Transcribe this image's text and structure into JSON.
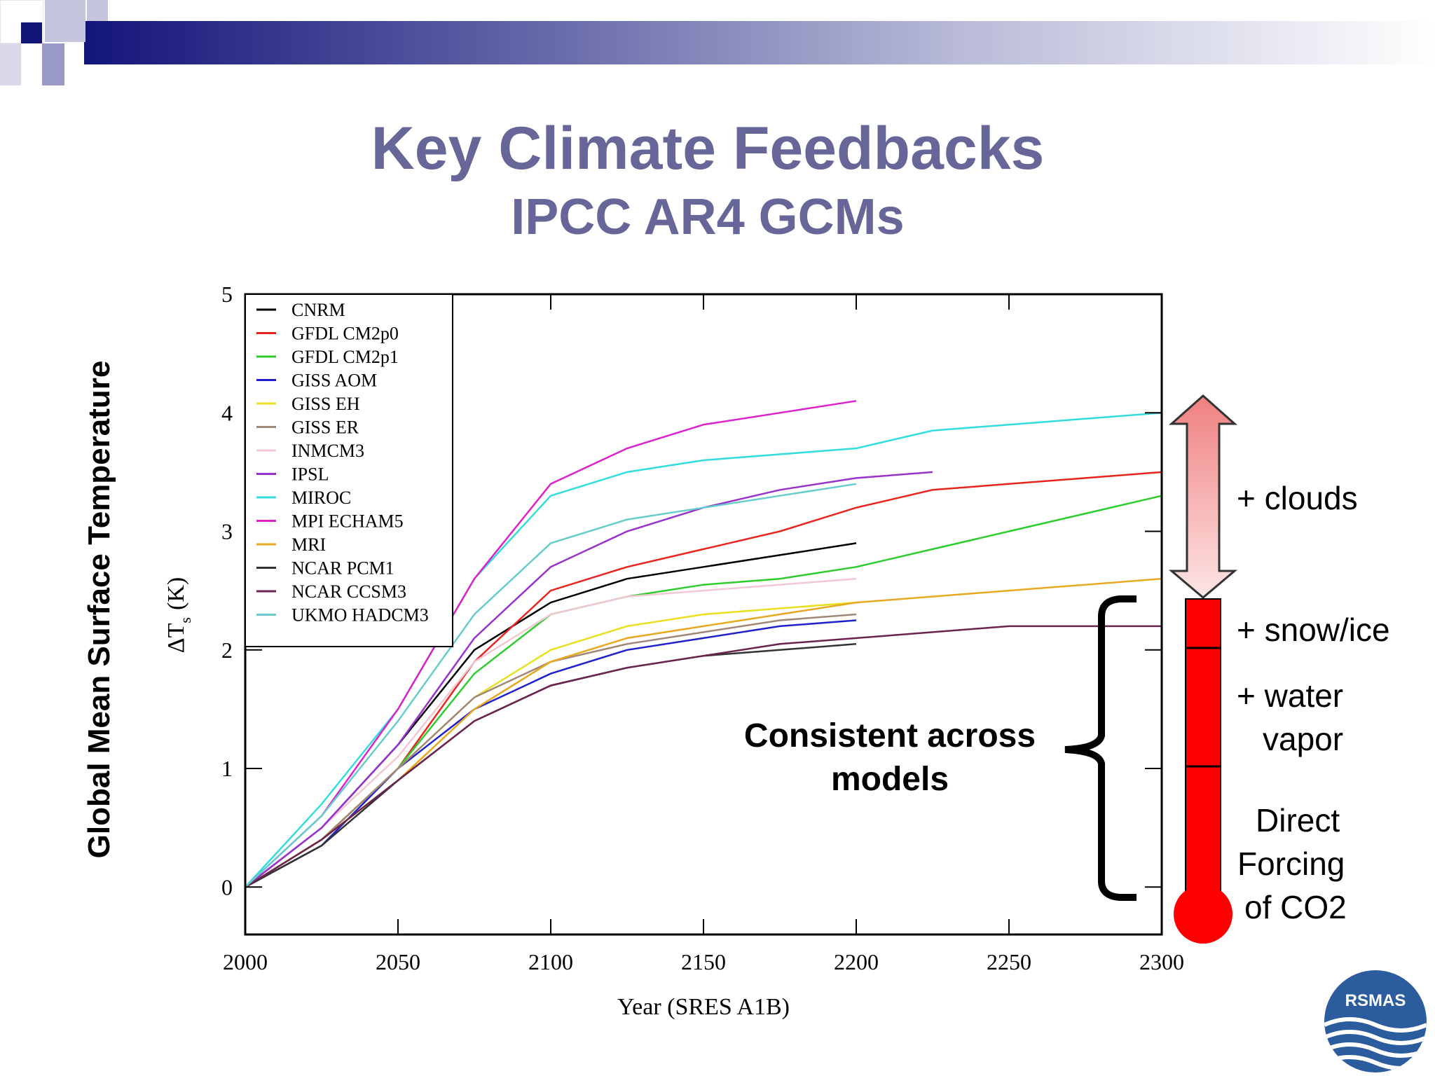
{
  "slide": {
    "title": "Key Climate Feedbacks",
    "subtitle": "IPCC AR4 GCMs",
    "side_label": "Global Mean Surface Temperature"
  },
  "annotations": {
    "clouds": "+ clouds",
    "snow_ice": "+ snow/ice",
    "water_vapor_1": "+ water",
    "water_vapor_2": "vapor",
    "direct_1": "Direct",
    "direct_2": "Forcing",
    "direct_3": "of CO2",
    "consistent_1": "Consistent across",
    "consistent_2": "models"
  },
  "logo": {
    "text": "RSMAS"
  },
  "colors": {
    "title": "#666699",
    "thermometer": "#ff0000",
    "arrow_top": "#f08080",
    "arrow_bottom": "#fde5e5"
  },
  "chart_data": {
    "type": "line",
    "xlabel": "Year (SRES A1B)",
    "ylabel": "ΔT",
    "ylabel_sub": "s",
    "ylabel_unit": "(K)",
    "xlim": [
      2000,
      2300
    ],
    "ylim": [
      -0.4,
      5
    ],
    "xticks": [
      2000,
      2050,
      2100,
      2150,
      2200,
      2250,
      2300
    ],
    "yticks": [
      0,
      1,
      2,
      3,
      4,
      5
    ],
    "legend_position": "top-left",
    "series": [
      {
        "name": "CNRM",
        "color": "#000000",
        "x": [
          2000,
          2025,
          2050,
          2075,
          2100,
          2125,
          2150,
          2175,
          2200
        ],
        "y": [
          0.0,
          0.5,
          1.2,
          2.0,
          2.4,
          2.6,
          2.7,
          2.8,
          2.9
        ]
      },
      {
        "name": "GFDL CM2p0",
        "color": "#e8251f",
        "x": [
          2000,
          2025,
          2050,
          2075,
          2100,
          2125,
          2150,
          2175,
          2200,
          2225,
          2250,
          2275,
          2300
        ],
        "y": [
          0.0,
          0.4,
          1.0,
          1.9,
          2.5,
          2.7,
          2.85,
          3.0,
          3.2,
          3.35,
          3.4,
          3.45,
          3.5
        ]
      },
      {
        "name": "GFDL CM2p1",
        "color": "#2ecc2e",
        "x": [
          2000,
          2025,
          2050,
          2075,
          2100,
          2125,
          2150,
          2175,
          2200,
          2225,
          2250,
          2275,
          2300
        ],
        "y": [
          0.0,
          0.4,
          1.0,
          1.8,
          2.3,
          2.45,
          2.55,
          2.6,
          2.7,
          2.85,
          3.0,
          3.15,
          3.3
        ]
      },
      {
        "name": "GISS AOM",
        "color": "#2020cc",
        "x": [
          2000,
          2025,
          2050,
          2075,
          2100,
          2125,
          2150,
          2175,
          2200
        ],
        "y": [
          0.0,
          0.35,
          1.0,
          1.5,
          1.8,
          2.0,
          2.1,
          2.2,
          2.25
        ]
      },
      {
        "name": "GISS EH",
        "color": "#e8e020",
        "x": [
          2000,
          2025,
          2050,
          2075,
          2100,
          2125,
          2150,
          2175,
          2200
        ],
        "y": [
          0.0,
          0.4,
          1.0,
          1.6,
          2.0,
          2.2,
          2.3,
          2.35,
          2.4
        ]
      },
      {
        "name": "GISS ER",
        "color": "#a08878",
        "x": [
          2000,
          2025,
          2050,
          2075,
          2100,
          2125,
          2150,
          2175,
          2200
        ],
        "y": [
          0.0,
          0.4,
          1.0,
          1.6,
          1.9,
          2.05,
          2.15,
          2.25,
          2.3
        ]
      },
      {
        "name": "INMCM3",
        "color": "#f2c8d2",
        "x": [
          2000,
          2025,
          2050,
          2075,
          2100,
          2125,
          2150,
          2175,
          2200
        ],
        "y": [
          0.0,
          0.5,
          1.1,
          1.9,
          2.3,
          2.45,
          2.5,
          2.55,
          2.6
        ]
      },
      {
        "name": "IPSL",
        "color": "#9933cc",
        "x": [
          2000,
          2025,
          2050,
          2075,
          2100,
          2125,
          2150,
          2175,
          2200,
          2225
        ],
        "y": [
          0.0,
          0.5,
          1.2,
          2.1,
          2.7,
          3.0,
          3.2,
          3.35,
          3.45,
          3.5
        ]
      },
      {
        "name": "MIROC",
        "color": "#33dddd",
        "x": [
          2000,
          2025,
          2050,
          2075,
          2100,
          2125,
          2150,
          2175,
          2200,
          2225,
          2250,
          2275,
          2300
        ],
        "y": [
          0.0,
          0.7,
          1.5,
          2.6,
          3.3,
          3.5,
          3.6,
          3.65,
          3.7,
          3.85,
          3.9,
          3.95,
          4.0
        ]
      },
      {
        "name": "MPI ECHAM5",
        "color": "#dd22cc",
        "x": [
          2000,
          2025,
          2050,
          2075,
          2100,
          2125,
          2150,
          2175,
          2200
        ],
        "y": [
          0.0,
          0.6,
          1.5,
          2.6,
          3.4,
          3.7,
          3.9,
          4.0,
          4.1
        ]
      },
      {
        "name": "MRI",
        "color": "#e8a820",
        "x": [
          2000,
          2025,
          2050,
          2075,
          2100,
          2125,
          2150,
          2175,
          2200,
          2225,
          2250,
          2275,
          2300
        ],
        "y": [
          0.0,
          0.4,
          0.9,
          1.5,
          1.9,
          2.1,
          2.2,
          2.3,
          2.4,
          2.45,
          2.5,
          2.55,
          2.6
        ]
      },
      {
        "name": "NCAR PCM1",
        "color": "#333333",
        "x": [
          2000,
          2025,
          2050,
          2075,
          2100,
          2125,
          2150,
          2175,
          2200
        ],
        "y": [
          0.0,
          0.35,
          0.9,
          1.4,
          1.7,
          1.85,
          1.95,
          2.0,
          2.05
        ]
      },
      {
        "name": "NCAR CCSM3",
        "color": "#6b2350",
        "x": [
          2000,
          2025,
          2050,
          2075,
          2100,
          2125,
          2150,
          2175,
          2200,
          2225,
          2250,
          2275,
          2300
        ],
        "y": [
          0.0,
          0.4,
          0.9,
          1.4,
          1.7,
          1.85,
          1.95,
          2.05,
          2.1,
          2.15,
          2.2,
          2.2,
          2.2
        ]
      },
      {
        "name": "UKMO HADCM3",
        "color": "#66cccc",
        "x": [
          2000,
          2025,
          2050,
          2075,
          2100,
          2125,
          2150,
          2175,
          2200
        ],
        "y": [
          0.0,
          0.6,
          1.4,
          2.3,
          2.9,
          3.1,
          3.2,
          3.3,
          3.4
        ]
      }
    ]
  }
}
